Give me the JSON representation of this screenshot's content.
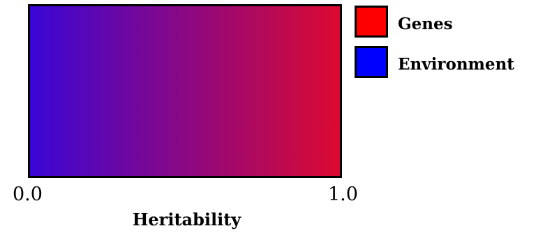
{
  "gradient": {
    "start_color": "#3a06d6",
    "end_color": "#dc0a30"
  },
  "legend": {
    "items": [
      {
        "label": "Genes",
        "color": "#ff0000"
      },
      {
        "label": "Environment",
        "color": "#0000ff"
      }
    ]
  },
  "axis": {
    "min_label": "0.0",
    "max_label": "1.0",
    "title": "Heritability"
  }
}
